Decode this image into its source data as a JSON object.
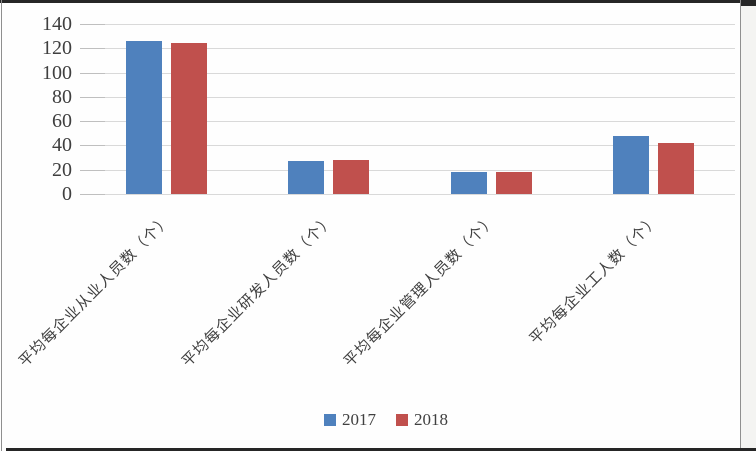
{
  "frame": {
    "top_border_color": "#262626",
    "bottom_border_color": "#262626",
    "side_line_color": "#8f8f8f",
    "outer_margin_color": "#f4f4f2",
    "background_color": "#fefefe"
  },
  "chart_data": {
    "type": "bar",
    "title": "",
    "xlabel": "",
    "ylabel": "",
    "categories": [
      "平均每企业从业人员数（个）",
      "平均每企业研发人员数（个）",
      "平均每企业管理人员数（个）",
      "平均每企业工人数（个）"
    ],
    "series": [
      {
        "name": "2017",
        "color": "#4F81BD",
        "values": [
          126,
          27,
          18,
          48
        ]
      },
      {
        "name": "2018",
        "color": "#C0504D",
        "values": [
          124,
          28,
          18,
          42
        ]
      }
    ],
    "ylim": [
      0,
      140
    ],
    "yticks": [
      0,
      20,
      40,
      60,
      80,
      100,
      120,
      140
    ],
    "grid": true,
    "gridline_color": "#d9d9d9",
    "tick_mark_color": "#bfbfbf",
    "tick_label_color": "#3f3f3f",
    "category_label_color": "#3f3f3f",
    "legend_position": "bottom",
    "legend_text_color": "#404040"
  }
}
